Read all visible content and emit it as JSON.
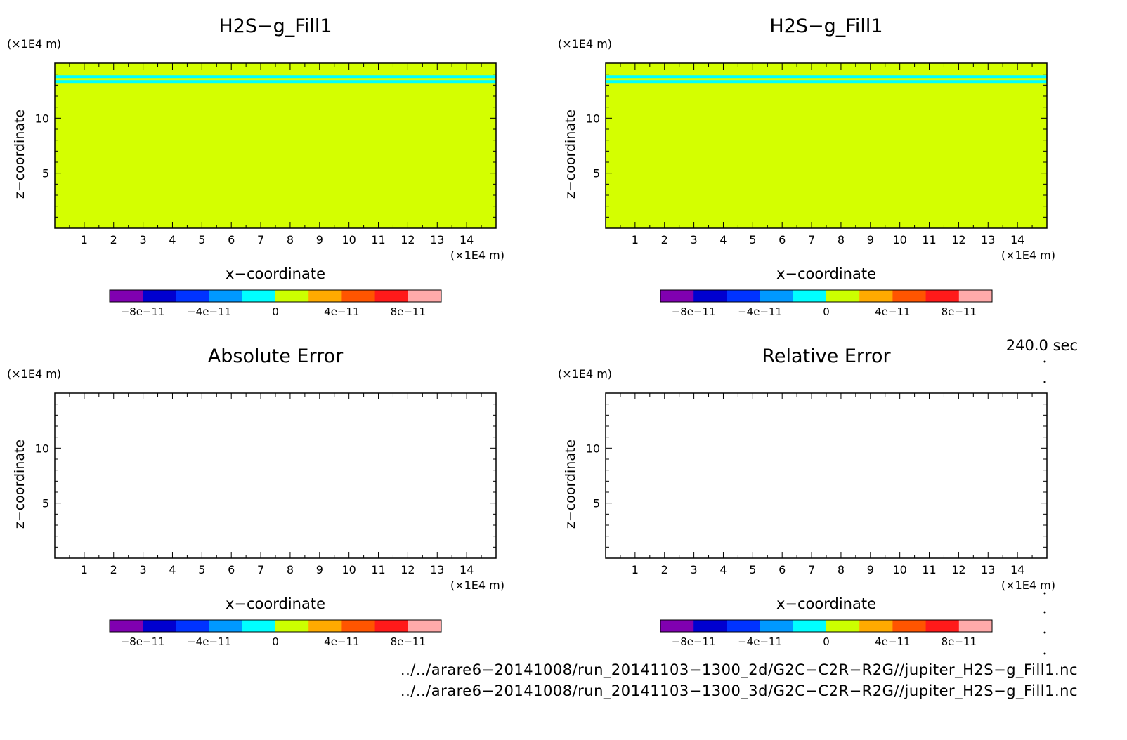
{
  "panels": [
    {
      "title": "H2S−g_Fill1",
      "field": "filled",
      "x_unit": "(×1E4 m)",
      "z_unit": "(×1E4 m)",
      "xlabel": "x−coordinate",
      "ylabel": "z−coordinate"
    },
    {
      "title": "H2S−g_Fill1",
      "field": "filled",
      "x_unit": "(×1E4 m)",
      "z_unit": "(×1E4 m)",
      "xlabel": "x−coordinate",
      "ylabel": "z−coordinate"
    },
    {
      "title": "Absolute Error",
      "field": "empty",
      "x_unit": "(×1E4 m)",
      "z_unit": "(×1E4 m)",
      "xlabel": "x−coordinate",
      "ylabel": "z−coordinate"
    },
    {
      "title": "Relative Error",
      "field": "empty",
      "x_unit": "(×1E4 m)",
      "z_unit": "(×1E4 m)",
      "xlabel": "x−coordinate",
      "ylabel": "z−coordinate"
    }
  ],
  "chart_data": {
    "type": "heatmap",
    "x_range": [
      0,
      15
    ],
    "z_range": [
      0,
      15
    ],
    "x_ticks": [
      1,
      2,
      3,
      4,
      5,
      6,
      7,
      8,
      9,
      10,
      11,
      12,
      13,
      14
    ],
    "z_ticks": [
      5,
      10
    ],
    "fill_color": "#d4ff00",
    "band_color": "#00ffff",
    "band_z": [
      13.2,
      13.9
    ],
    "colorbar": {
      "colors": [
        "#8000b0",
        "#0000d0",
        "#0033ff",
        "#0099ff",
        "#00ffff",
        "#ccff00",
        "#ffaa00",
        "#ff5500",
        "#ff1a1a",
        "#ffaaaa"
      ],
      "range": [
        -1e-10,
        1e-10
      ],
      "tick_values": [
        -8e-11,
        -4e-11,
        0,
        4e-11,
        8e-11
      ],
      "tick_labels": [
        "−8e−11",
        "−4e−11",
        "0",
        "4e−11",
        "8e−11"
      ]
    }
  },
  "time_label": "240.0 sec",
  "files": [
    "../../arare6−20141008/run_20141103−1300_2d/G2C−C2R−R2G//jupiter_H2S−g_Fill1.nc",
    "../../arare6−20141008/run_20141103−1300_3d/G2C−C2R−R2G//jupiter_H2S−g_Fill1.nc"
  ]
}
